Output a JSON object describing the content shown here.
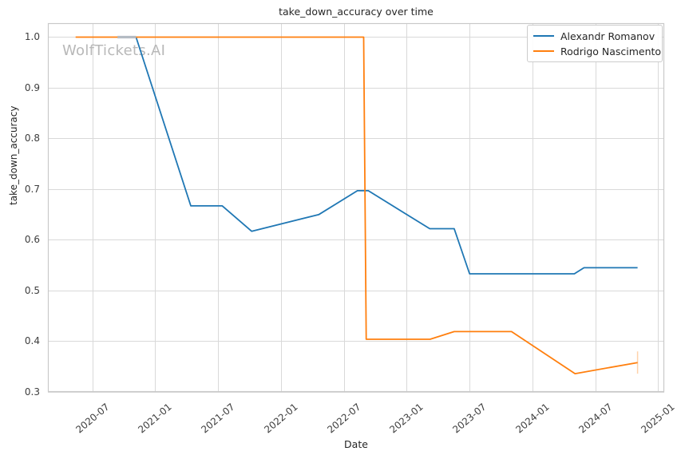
{
  "figure": {
    "title": "take_down_accuracy over time",
    "xlabel": "Date",
    "ylabel": "take_down_accuracy",
    "watermark": "WolfTickets.AI"
  },
  "legend": {
    "position": "upper right",
    "items": [
      {
        "label": "Alexandr Romanov",
        "color": "#1f77b4"
      },
      {
        "label": "Rodrigo Nascimento",
        "color": "#ff7f0e"
      }
    ]
  },
  "colors": {
    "blue_series": "#1f77b4",
    "orange_series": "#ff7f0e",
    "grid": "#d9d9d9",
    "spine": "#c9c9c9",
    "title_text": "#262626",
    "tick_text": "#3d3d3d",
    "watermark": "#b8b8b8",
    "overlap_artifact": "#b4bbc3",
    "error_bar": "#ff7f0e"
  },
  "chart_data": {
    "type": "line",
    "title": "take_down_accuracy over time",
    "xlabel": "Date",
    "ylabel": "take_down_accuracy",
    "grid": true,
    "legend_position": "upper right",
    "x_tick_labels": [
      "2020-07",
      "2021-01",
      "2021-07",
      "2022-01",
      "2022-07",
      "2023-01",
      "2023-07",
      "2024-01",
      "2024-07",
      "2025-01"
    ],
    "y_ticks": [
      1.0,
      0.9,
      0.8,
      0.7,
      0.6,
      0.5,
      0.4,
      0.3
    ],
    "axes": {
      "xlim_years": [
        2020.146,
        2025.048
      ],
      "ylim": [
        0.3,
        1.0275
      ]
    },
    "series": [
      {
        "name": "Alexandr Romanov",
        "color": "#1f77b4",
        "points": [
          [
            "2020-09-13",
            1.0
          ],
          [
            "2020-11-06",
            1.0
          ],
          [
            "2021-04-13",
            0.667
          ],
          [
            "2021-07-13",
            0.667
          ],
          [
            "2021-10-07",
            0.617
          ],
          [
            "2022-04-20",
            0.65
          ],
          [
            "2022-08-10",
            0.697
          ],
          [
            "2022-09-11",
            0.697
          ],
          [
            "2023-03-07",
            0.622
          ],
          [
            "2023-05-17",
            0.622
          ],
          [
            "2023-07-01",
            0.533
          ],
          [
            "2024-05-01",
            0.533
          ],
          [
            "2024-05-29",
            0.545
          ],
          [
            "2024-11-02",
            0.545
          ]
        ]
      },
      {
        "name": "Rodrigo Nascimento",
        "color": "#ff7f0e",
        "points": [
          [
            "2020-05-13",
            1.0
          ],
          [
            "2022-08-28",
            1.0
          ],
          [
            "2022-09-05",
            0.404
          ],
          [
            "2023-03-08",
            0.404
          ],
          [
            "2023-05-17",
            0.419
          ],
          [
            "2023-11-01",
            0.419
          ],
          [
            "2024-05-03",
            0.336
          ],
          [
            "2024-11-02",
            0.358
          ]
        ],
        "error_bar": {
          "date": "2024-11-02",
          "low": 0.336,
          "high": 0.38,
          "opacity": 0.35
        }
      }
    ],
    "overlap_artifact": {
      "start": "2020-09-13",
      "end": "2020-11-06",
      "value": 1.0,
      "color": "#b4bbc3"
    }
  }
}
